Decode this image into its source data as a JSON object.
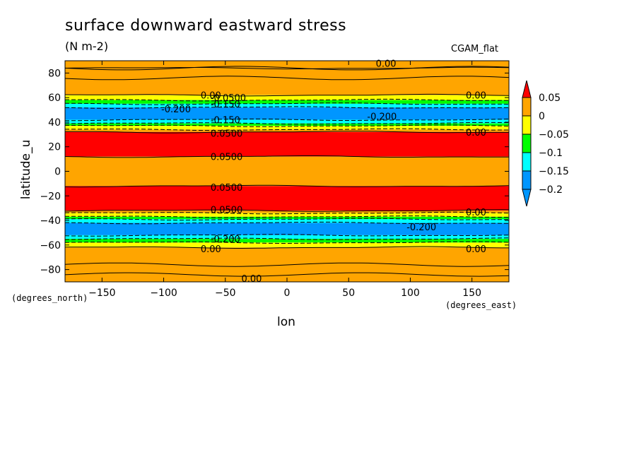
{
  "chart_data": {
    "type": "heatmap",
    "title": "surface downward eastward stress",
    "units": "(N m-2)",
    "dataset": "CGAM_flat",
    "xlabel": "lon",
    "ylabel": "latitude_u",
    "x_units": "(degrees_east)",
    "y_units": "(degrees_north)",
    "xlim": [
      -180,
      180
    ],
    "ylim": [
      -90,
      90
    ],
    "x_ticks": [
      -150,
      -100,
      -50,
      0,
      50,
      100,
      150
    ],
    "y_ticks": [
      -80,
      -60,
      -40,
      -20,
      0,
      20,
      40,
      60,
      80
    ],
    "colorbar": {
      "levels": [
        "0.05",
        "0",
        "−0.05",
        "−0.1",
        "−0.15",
        "−0.2"
      ],
      "colors": [
        "#ff0000",
        "#ffa500",
        "#ffff00",
        "#00ff00",
        "#00ffff",
        "#0096ff"
      ],
      "extend_top_color": "#ff0000",
      "extend_bottom_color": "#0096ff"
    },
    "bands": [
      {
        "lat_min": 84,
        "lat_max": 90,
        "value": "0.00",
        "color": "#ffa500"
      },
      {
        "lat_min": 62,
        "lat_max": 84,
        "value": "0.00",
        "color": "#ffa500"
      },
      {
        "lat_min": 58,
        "lat_max": 62,
        "color": "#ffff00"
      },
      {
        "lat_min": 55,
        "lat_max": 58,
        "color": "#00ff00"
      },
      {
        "lat_min": 52,
        "lat_max": 55,
        "color": "#00ffff"
      },
      {
        "lat_min": 42,
        "lat_max": 52,
        "color": "#0096ff"
      },
      {
        "lat_min": 39,
        "lat_max": 42,
        "color": "#00ffff"
      },
      {
        "lat_min": 37,
        "lat_max": 39,
        "color": "#00ff00"
      },
      {
        "lat_min": 34,
        "lat_max": 37,
        "color": "#ffff00"
      },
      {
        "lat_min": 32,
        "lat_max": 34,
        "color": "#ffa500"
      },
      {
        "lat_min": 12,
        "lat_max": 32,
        "color": "#ff0000"
      },
      {
        "lat_min": -12,
        "lat_max": 12,
        "color": "#ffa500"
      },
      {
        "lat_min": -32,
        "lat_max": -12,
        "color": "#ff0000"
      },
      {
        "lat_min": -34,
        "lat_max": -32,
        "color": "#ffa500"
      },
      {
        "lat_min": -37,
        "lat_max": -34,
        "color": "#ffff00"
      },
      {
        "lat_min": -39,
        "lat_max": -37,
        "color": "#00ff00"
      },
      {
        "lat_min": -42,
        "lat_max": -39,
        "color": "#00ffff"
      },
      {
        "lat_min": -52,
        "lat_max": -42,
        "color": "#0096ff"
      },
      {
        "lat_min": -55,
        "lat_max": -52,
        "color": "#00ffff"
      },
      {
        "lat_min": -58,
        "lat_max": -55,
        "color": "#00ff00"
      },
      {
        "lat_min": -62,
        "lat_max": -58,
        "color": "#ffff00"
      },
      {
        "lat_min": -90,
        "lat_max": -62,
        "color": "#ffa500"
      }
    ],
    "contour_labels": [
      {
        "text": "0.00",
        "lon": 72,
        "lat": 88
      },
      {
        "text": "0.00",
        "lon": -70,
        "lat": 62
      },
      {
        "text": "-0.0500",
        "lon": -62,
        "lat": 60
      },
      {
        "text": "-0.150",
        "lon": -62,
        "lat": 55
      },
      {
        "text": "-0.200",
        "lon": -102,
        "lat": 51
      },
      {
        "text": "-0.150",
        "lon": -62,
        "lat": 42
      },
      {
        "text": "-0.200",
        "lon": 65,
        "lat": 45
      },
      {
        "text": "0.00",
        "lon": 145,
        "lat": 62
      },
      {
        "text": "0.00",
        "lon": 145,
        "lat": 32
      },
      {
        "text": "0.0500",
        "lon": -62,
        "lat": 31
      },
      {
        "text": "0.0500",
        "lon": -62,
        "lat": 12
      },
      {
        "text": "0.0500",
        "lon": -62,
        "lat": -13
      },
      {
        "text": "0.0500",
        "lon": -62,
        "lat": -31
      },
      {
        "text": "-0.200",
        "lon": -62,
        "lat": -55
      },
      {
        "text": "-0.200",
        "lon": 97,
        "lat": -45
      },
      {
        "text": "0.00",
        "lon": 145,
        "lat": -33
      },
      {
        "text": "0.00",
        "lon": 145,
        "lat": -63
      },
      {
        "text": "0.00",
        "lon": -70,
        "lat": -63
      },
      {
        "text": "0.00",
        "lon": -37,
        "lat": -87
      }
    ]
  }
}
